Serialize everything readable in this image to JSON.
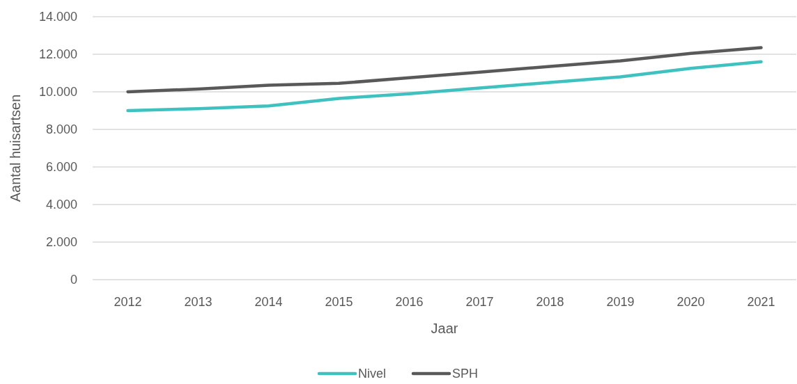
{
  "chart_data": {
    "type": "line",
    "xlabel": "Jaar",
    "ylabel": "Aantal huisartsen",
    "categories": [
      "2012",
      "2013",
      "2014",
      "2015",
      "2016",
      "2017",
      "2018",
      "2019",
      "2020",
      "2021"
    ],
    "series": [
      {
        "name": "Nivel",
        "color": "#3fc1c0",
        "values": [
          9000,
          9100,
          9250,
          9650,
          9900,
          10200,
          10500,
          10800,
          11250,
          11600
        ]
      },
      {
        "name": "SPH",
        "color": "#595959",
        "values": [
          10000,
          10150,
          10350,
          10450,
          10750,
          11050,
          11350,
          11650,
          12050,
          12350
        ]
      }
    ],
    "ylim": [
      0,
      14000
    ],
    "yticks": [
      {
        "value": 0,
        "label": "0"
      },
      {
        "value": 2000,
        "label": "2.000"
      },
      {
        "value": 4000,
        "label": "4.000"
      },
      {
        "value": 6000,
        "label": "6.000"
      },
      {
        "value": 8000,
        "label": "8.000"
      },
      {
        "value": 10000,
        "label": "10.000"
      },
      {
        "value": 12000,
        "label": "12.000"
      },
      {
        "value": 14000,
        "label": "14.000"
      }
    ],
    "grid": "y",
    "legend": "bottom",
    "marker": "none",
    "line_style": "solid"
  }
}
